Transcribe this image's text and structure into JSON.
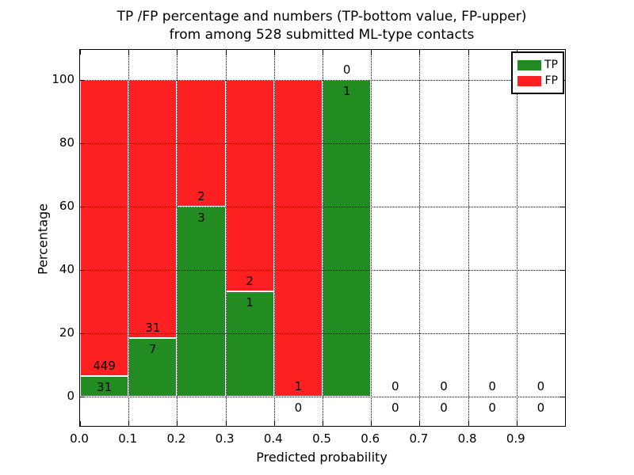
{
  "figure": {
    "title_line1": "TP /FP percentage and numbers (TP-bottom value, FP-upper)",
    "title_line2": "from among 528 submitted ML-type contacts",
    "xlabel": "Predicted probability",
    "ylabel": "Percentage"
  },
  "legend": {
    "position": "upper right",
    "items": [
      {
        "label": "TP",
        "color": "#228b22"
      },
      {
        "label": "FP",
        "color": "#ff2121"
      }
    ]
  },
  "chart_data": {
    "type": "bar",
    "stacked": true,
    "normalized_to_percent": true,
    "title": "TP /FP percentage and numbers (TP-bottom value, FP-upper) from among 528 submitted ML-type contacts",
    "xlabel": "Predicted probability",
    "ylabel": "Percentage",
    "total_contacts": 528,
    "bin_width": 0.1,
    "bin_starts": [
      0.0,
      0.1,
      0.2,
      0.3,
      0.4,
      0.5,
      0.6,
      0.7,
      0.8,
      0.9
    ],
    "series": [
      {
        "name": "TP",
        "color": "#228b22",
        "counts": [
          31,
          7,
          3,
          1,
          0,
          1,
          0,
          0,
          0,
          0
        ]
      },
      {
        "name": "FP",
        "color": "#ff2121",
        "counts": [
          449,
          31,
          2,
          2,
          1,
          0,
          0,
          0,
          0,
          0
        ]
      }
    ],
    "tp_percent_of_bin": [
      6.5,
      18.4,
      60.0,
      33.3,
      0.0,
      100.0,
      0,
      0,
      0,
      0
    ],
    "xticks": [
      "0.0",
      "0.1",
      "0.2",
      "0.3",
      "0.4",
      "0.5",
      "0.6",
      "0.7",
      "0.8",
      "0.9"
    ],
    "yticks": [
      0,
      20,
      40,
      60,
      80,
      100
    ],
    "xlim": [
      0.0,
      1.0
    ],
    "ylim": [
      -9.3,
      109.8
    ],
    "grid": true,
    "grid_style": "dotted",
    "legend_position": "upper right"
  }
}
